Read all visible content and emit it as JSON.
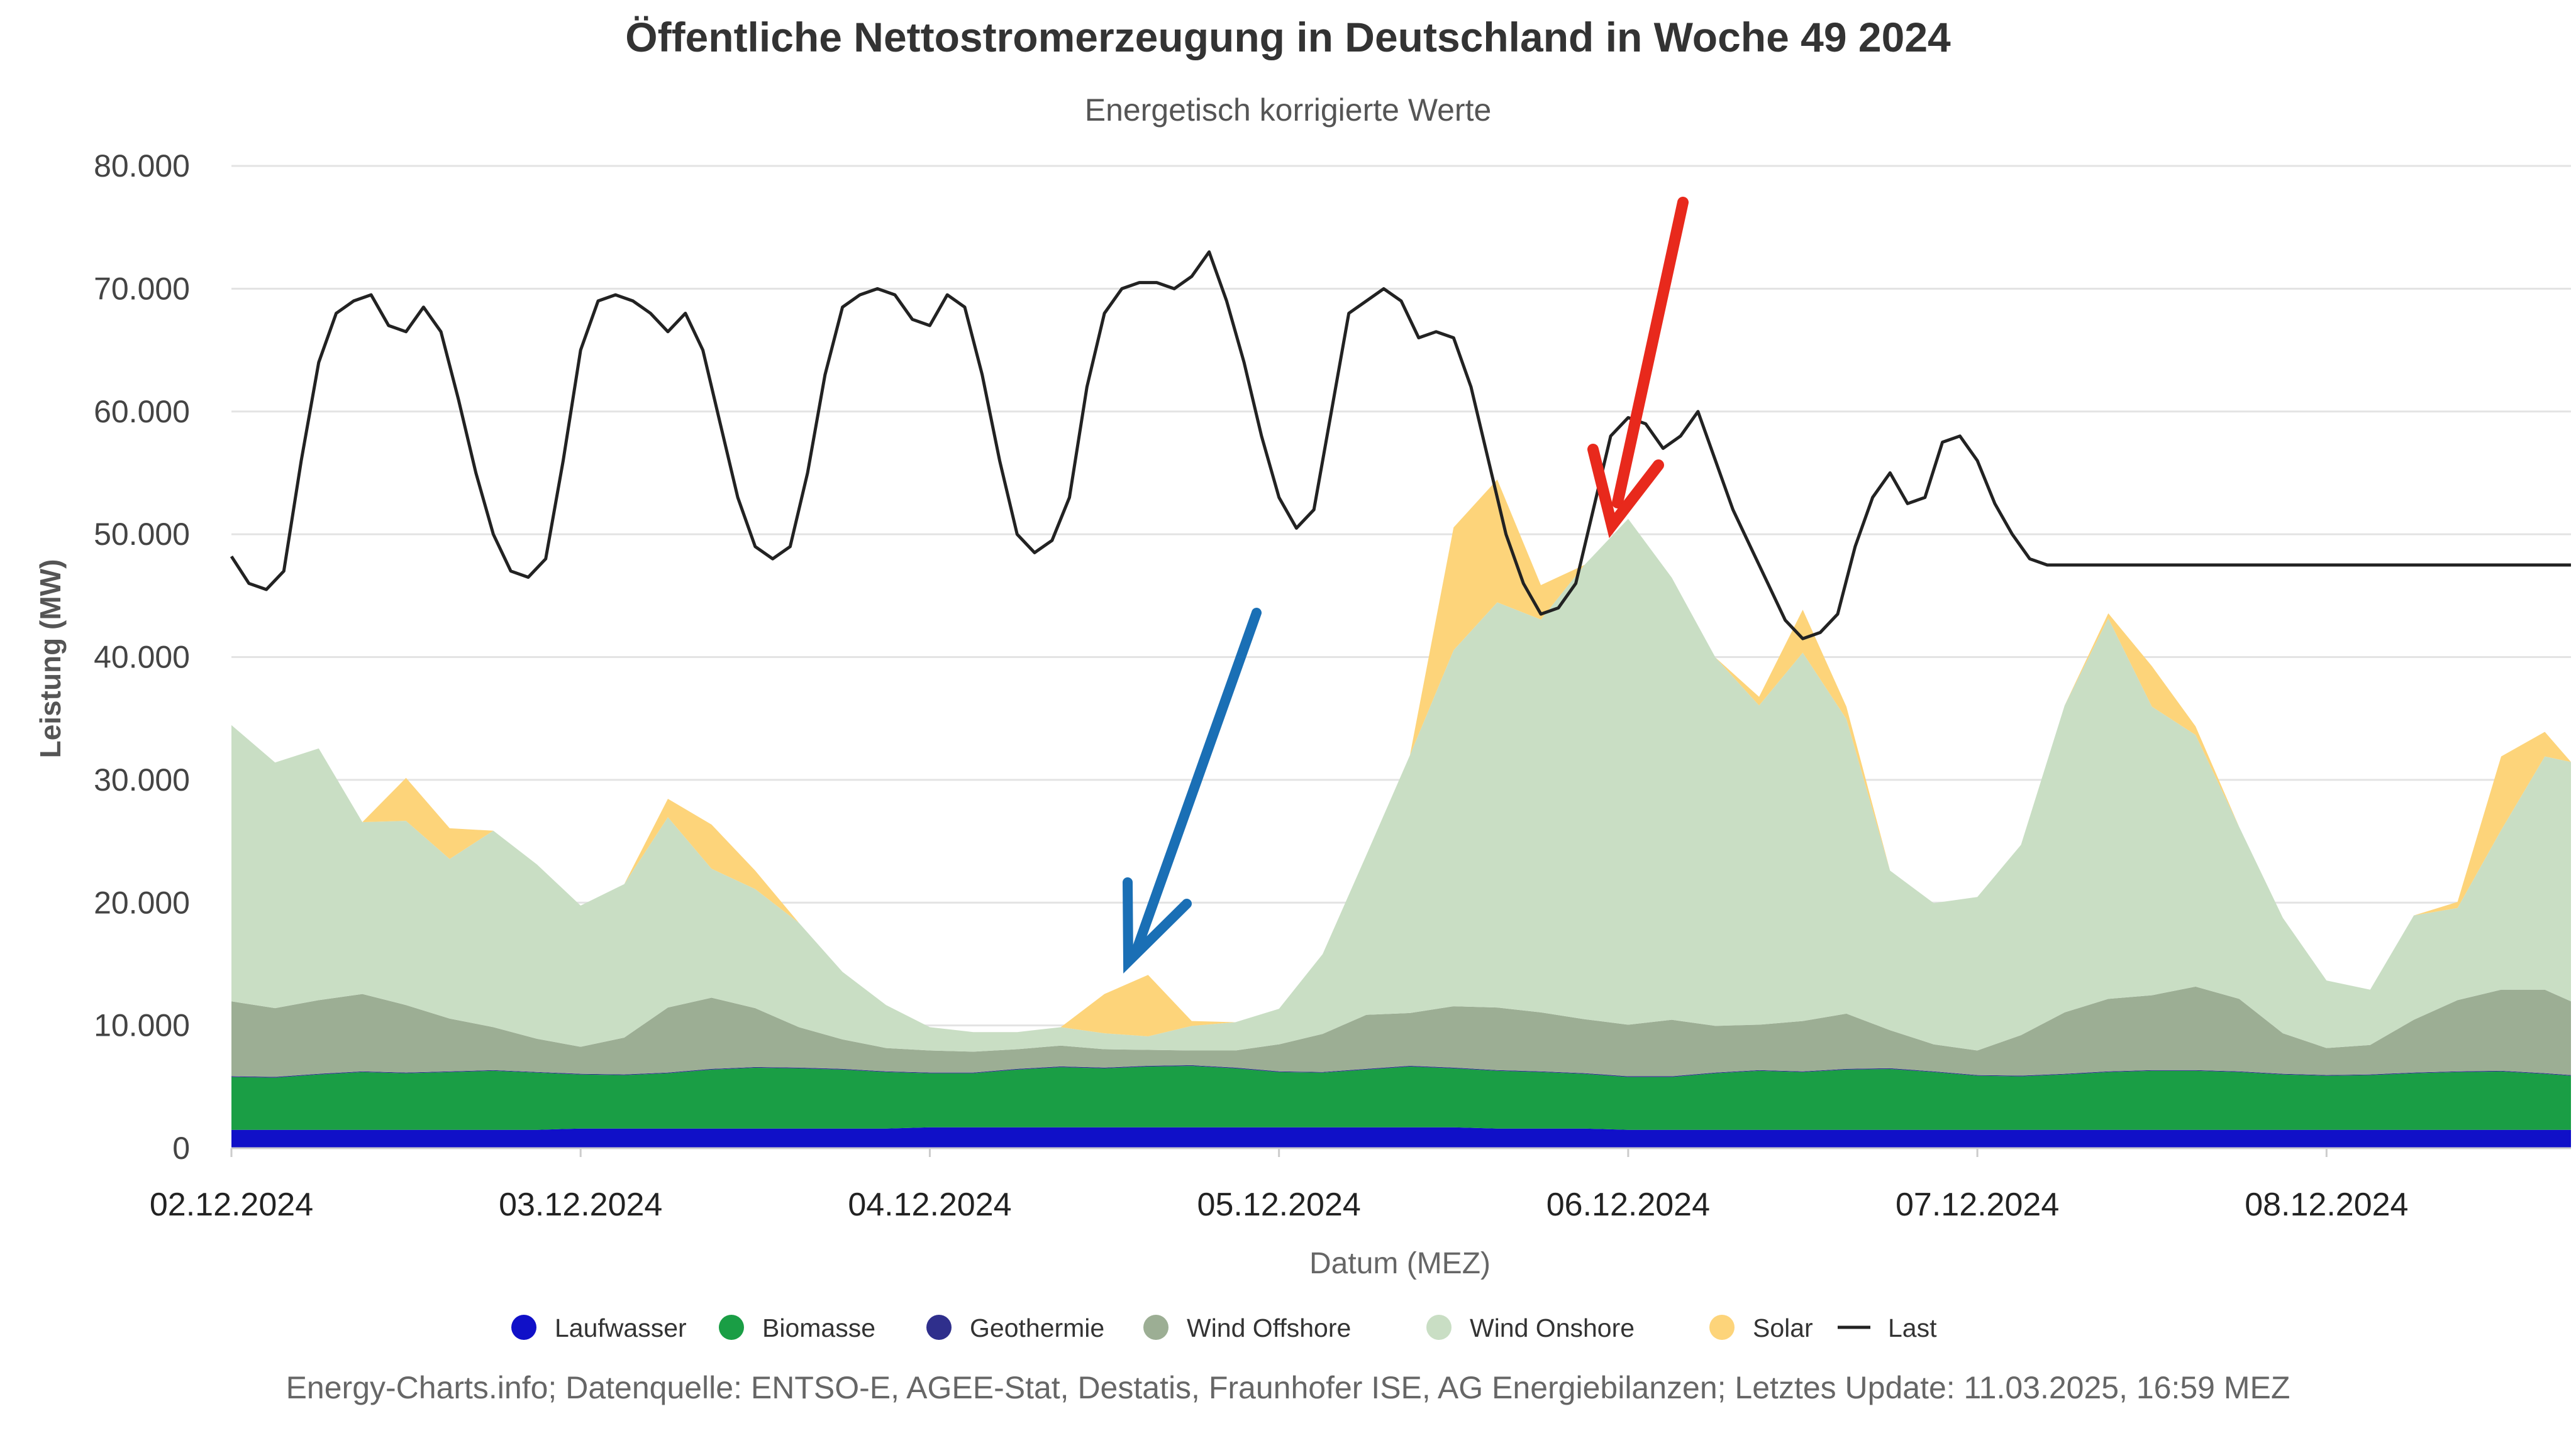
{
  "chart_data": {
    "type": "area",
    "title": "Öffentliche Nettostromerzeugung in Deutschland in Woche 49 2024",
    "subtitle": "Energetisch korrigierte Werte",
    "xlabel": "Datum (MEZ)",
    "ylabel": "Leistung (MW)",
    "ylim": [
      0,
      80000
    ],
    "xlim_days": [
      0,
      6.7
    ],
    "y_ticks": [
      "0",
      "10.000",
      "20.000",
      "30.000",
      "40.000",
      "50.000",
      "60.000",
      "70.000",
      "80.000"
    ],
    "x_ticks": [
      "02.12.2024",
      "03.12.2024",
      "04.12.2024",
      "05.12.2024",
      "06.12.2024",
      "07.12.2024",
      "08.12.2024"
    ],
    "grid": true,
    "legend_position": "bottom",
    "footer": "Energy-Charts.info; Datenquelle: ENTSO-E, AGEE-Stat, Destatis, Fraunhofer ISE, AG Energiebilanzen; Letztes Update: 11.03.2025, 16:59 MEZ",
    "x_days": [
      0,
      0.125,
      0.25,
      0.375,
      0.5,
      0.625,
      0.75,
      0.875,
      1,
      1.125,
      1.25,
      1.375,
      1.5,
      1.625,
      1.75,
      1.875,
      2,
      2.125,
      2.25,
      2.375,
      2.5,
      2.625,
      2.75,
      2.875,
      3,
      3.125,
      3.25,
      3.375,
      3.5,
      3.625,
      3.75,
      3.875,
      4,
      4.125,
      4.25,
      4.375,
      4.5,
      4.625,
      4.75,
      4.875,
      5,
      5.125,
      5.25,
      5.375,
      5.5,
      5.625,
      5.75,
      5.875,
      6,
      6.125,
      6.25,
      6.375,
      6.5,
      6.625,
      6.7
    ],
    "series": [
      {
        "name": "Laufwasser",
        "color": "#1010c8",
        "values": [
          1500,
          1500,
          1500,
          1500,
          1500,
          1500,
          1500,
          1500,
          1600,
          1600,
          1600,
          1600,
          1600,
          1600,
          1600,
          1600,
          1700,
          1700,
          1700,
          1700,
          1700,
          1700,
          1700,
          1700,
          1700,
          1700,
          1700,
          1700,
          1700,
          1600,
          1600,
          1600,
          1500,
          1500,
          1500,
          1500,
          1500,
          1500,
          1500,
          1500,
          1500,
          1500,
          1500,
          1500,
          1500,
          1500,
          1500,
          1500,
          1500,
          1500,
          1500,
          1500,
          1500,
          1500,
          1500
        ]
      },
      {
        "name": "Biomasse",
        "color": "#1a9e45",
        "values": [
          4300,
          4250,
          4500,
          4700,
          4600,
          4700,
          4800,
          4650,
          4400,
          4350,
          4500,
          4800,
          4950,
          4900,
          4800,
          4600,
          4400,
          4400,
          4700,
          4900,
          4800,
          4950,
          5000,
          4800,
          4500,
          4450,
          4700,
          4950,
          4800,
          4700,
          4600,
          4450,
          4300,
          4300,
          4600,
          4800,
          4700,
          4900,
          4950,
          4700,
          4400,
          4350,
          4500,
          4700,
          4800,
          4800,
          4700,
          4500,
          4400,
          4450,
          4600,
          4700,
          4750,
          4550,
          4400
        ]
      },
      {
        "name": "Geothermie",
        "color": "#2f2f8c",
        "values": [
          60,
          60,
          60,
          60,
          60,
          60,
          60,
          60,
          60,
          60,
          60,
          60,
          60,
          60,
          60,
          60,
          60,
          60,
          60,
          60,
          60,
          60,
          60,
          60,
          60,
          60,
          60,
          60,
          60,
          60,
          60,
          60,
          60,
          60,
          60,
          60,
          60,
          60,
          60,
          60,
          60,
          60,
          60,
          60,
          60,
          60,
          60,
          60,
          60,
          60,
          60,
          60,
          60,
          60,
          60
        ]
      },
      {
        "name": "Wind Offshore",
        "color": "#9cae94",
        "values": [
          6100,
          5600,
          6000,
          6300,
          5500,
          4300,
          3500,
          2700,
          2200,
          3000,
          5300,
          5800,
          4800,
          3300,
          2400,
          1900,
          1800,
          1700,
          1600,
          1700,
          1500,
          1300,
          1200,
          1400,
          2200,
          3100,
          4400,
          4300,
          5000,
          5100,
          4800,
          4400,
          4200,
          4600,
          3800,
          3700,
          4100,
          4500,
          3100,
          2200,
          2000,
          3300,
          5000,
          5900,
          6100,
          6800,
          5900,
          3300,
          2200,
          2400,
          4300,
          5800,
          6600,
          6800,
          6000
        ]
      },
      {
        "name": "Wind Onshore",
        "color": "#c9dec4",
        "values": [
          22500,
          20000,
          20500,
          14000,
          15000,
          13000,
          16000,
          14200,
          11500,
          12500,
          15500,
          10500,
          9700,
          8500,
          5500,
          3500,
          1900,
          1600,
          1400,
          1500,
          1300,
          1100,
          2000,
          2300,
          2900,
          6500,
          13000,
          21000,
          29000,
          33000,
          32000,
          37000,
          41200,
          36000,
          30000,
          26000,
          30000,
          24000,
          13000,
          11500,
          12500,
          15500,
          25000,
          31000,
          23500,
          20500,
          14000,
          9400,
          5500,
          4500,
          8500,
          7500,
          13000,
          19000,
          19500
        ]
      },
      {
        "name": "Solar",
        "color": "#fdd47a",
        "values": [
          0,
          0,
          0,
          0,
          3500,
          2500,
          0,
          0,
          0,
          0,
          1500,
          3600,
          1500,
          0,
          0,
          0,
          0,
          0,
          0,
          0,
          3200,
          5000,
          400,
          0,
          0,
          0,
          0,
          0,
          10000,
          10000,
          2800,
          0,
          0,
          0,
          0,
          700,
          3500,
          1000,
          0,
          0,
          0,
          0,
          0,
          400,
          3300,
          700,
          0,
          0,
          0,
          0,
          0,
          500,
          6000,
          2000,
          0
        ]
      }
    ],
    "line": {
      "name": "Last",
      "color": "#222222",
      "x_days": [
        0,
        0.05,
        0.1,
        0.15,
        0.2,
        0.25,
        0.3,
        0.35,
        0.4,
        0.45,
        0.5,
        0.55,
        0.6,
        0.65,
        0.7,
        0.75,
        0.8,
        0.85,
        0.9,
        0.95,
        1.0,
        1.05,
        1.1,
        1.15,
        1.2,
        1.25,
        1.3,
        1.35,
        1.4,
        1.45,
        1.5,
        1.55,
        1.6,
        1.65,
        1.7,
        1.75,
        1.8,
        1.85,
        1.9,
        1.95,
        2.0,
        2.05,
        2.1,
        2.15,
        2.2,
        2.25,
        2.3,
        2.35,
        2.4,
        2.45,
        2.5,
        2.55,
        2.6,
        2.65,
        2.7,
        2.75,
        2.8,
        2.85,
        2.9,
        2.95,
        3.0,
        3.05,
        3.1,
        3.15,
        3.2,
        3.25,
        3.3,
        3.35,
        3.4,
        3.45,
        3.5,
        3.55,
        3.6,
        3.65,
        3.7,
        3.75,
        3.8,
        3.85,
        3.9,
        3.95,
        4.0,
        4.05,
        4.1,
        4.15,
        4.2,
        4.25,
        4.3,
        4.35,
        4.4,
        4.45,
        4.5,
        4.55,
        4.6,
        4.65,
        4.7,
        4.75,
        4.8,
        4.85,
        4.9,
        4.95,
        5.0,
        5.05,
        5.1,
        5.15,
        5.2,
        5.25,
        5.3,
        5.35,
        5.4,
        5.45,
        5.5,
        5.55,
        5.6,
        5.65,
        5.7,
        5.75,
        5.8,
        5.85,
        5.9,
        5.95,
        6.0,
        6.05,
        6.1,
        6.15,
        6.2,
        6.25,
        6.3,
        6.35,
        6.4,
        6.45,
        6.5,
        6.55,
        6.6,
        6.65,
        6.7
      ],
      "values": [
        48200,
        46000,
        45500,
        47000,
        56000,
        64000,
        68000,
        69000,
        69500,
        67000,
        66500,
        68500,
        66500,
        61000,
        55000,
        50000,
        47000,
        46500,
        48000,
        56000,
        65000,
        69000,
        69500,
        69000,
        68000,
        66500,
        68000,
        65000,
        59000,
        53000,
        49000,
        48000,
        49000,
        55000,
        63000,
        68500,
        69500,
        70000,
        69500,
        67500,
        67000,
        69500,
        68500,
        63000,
        56000,
        50000,
        48500,
        49500,
        53000,
        62000,
        68000,
        70000,
        70500,
        70500,
        70000,
        71000,
        73000,
        69000,
        64000,
        58000,
        53000,
        50500,
        52000,
        60000,
        68000,
        69000,
        70000,
        69000,
        66000,
        66500,
        66000,
        62000,
        56000,
        50000,
        46000,
        43500,
        44000,
        46000,
        52000,
        58000,
        59500,
        59000,
        57000,
        58000,
        60000,
        56000,
        52000,
        49000,
        46000,
        43000,
        41500,
        42000,
        43500,
        49000,
        53000,
        55000,
        52500,
        53000,
        57500,
        58000,
        56000,
        52500,
        50000,
        48000,
        47500,
        47500,
        47500,
        47500,
        47500,
        47500,
        47500,
        47500,
        47500,
        47500,
        47500,
        47500,
        47500,
        47500,
        47500,
        47500,
        47500,
        47500,
        47500,
        47500,
        47500,
        47500,
        47500,
        47500,
        47500,
        47500,
        47500,
        47500,
        47500,
        47500,
        47500
      ]
    }
  },
  "annotations": [
    {
      "name": "red-arrow",
      "color": "#e8291c"
    },
    {
      "name": "blue-arrow",
      "color": "#1a6fb5"
    }
  ]
}
